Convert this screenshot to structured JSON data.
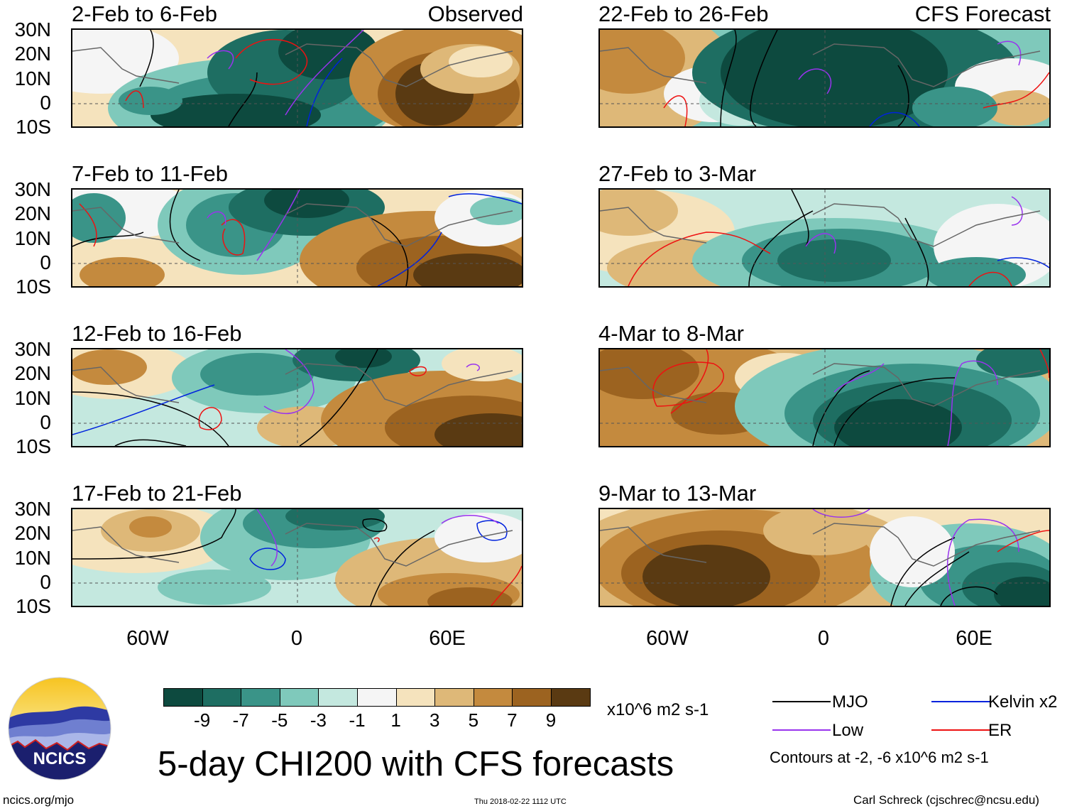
{
  "panels": [
    {
      "title": "2-Feb to 6-Feb",
      "tag": "Observed"
    },
    {
      "title": "22-Feb to 26-Feb",
      "tag": "CFS Forecast"
    },
    {
      "title": "7-Feb to 11-Feb",
      "tag": ""
    },
    {
      "title": "27-Feb to 3-Mar",
      "tag": ""
    },
    {
      "title": "12-Feb to 16-Feb",
      "tag": ""
    },
    {
      "title": "4-Mar to 8-Mar",
      "tag": ""
    },
    {
      "title": "17-Feb to 21-Feb",
      "tag": ""
    },
    {
      "title": "9-Mar to 13-Mar",
      "tag": ""
    }
  ],
  "lat_labels": [
    "30N",
    "20N",
    "10N",
    "0",
    "10S"
  ],
  "lon_labels": [
    "60W",
    "0",
    "60E"
  ],
  "colorbar": {
    "colors": [
      "#0d4a3f",
      "#1e6e62",
      "#3a9488",
      "#7fc9bb",
      "#c4e8df",
      "#f5f5f5",
      "#f5e3bd",
      "#deb878",
      "#c48a3e",
      "#9c6320",
      "#5a3a12"
    ],
    "labels": [
      "-9",
      "-7",
      "-5",
      "-3",
      "-1",
      "1",
      "3",
      "5",
      "7",
      "9"
    ],
    "units": "x10^6 m2 s-1"
  },
  "title": "5-day CHI200 with CFS forecasts",
  "legend": {
    "items": [
      {
        "label": "MJO",
        "color": "#000000"
      },
      {
        "label": "Kelvin x2",
        "color": "#0022dd"
      },
      {
        "label": "Low",
        "color": "#9933ee"
      },
      {
        "label": "ER",
        "color": "#ee1111"
      }
    ],
    "contours_note": "Contours at -2, -6 x10^6 m2 s-1"
  },
  "logo": {
    "text": "NCICS"
  },
  "footer": {
    "url": "ncics.org/mjo",
    "timestamp": "Thu 2018-02-22 1112 UTC",
    "credit": "Carl Schreck (cjschrec@ncsu.edu)"
  }
}
